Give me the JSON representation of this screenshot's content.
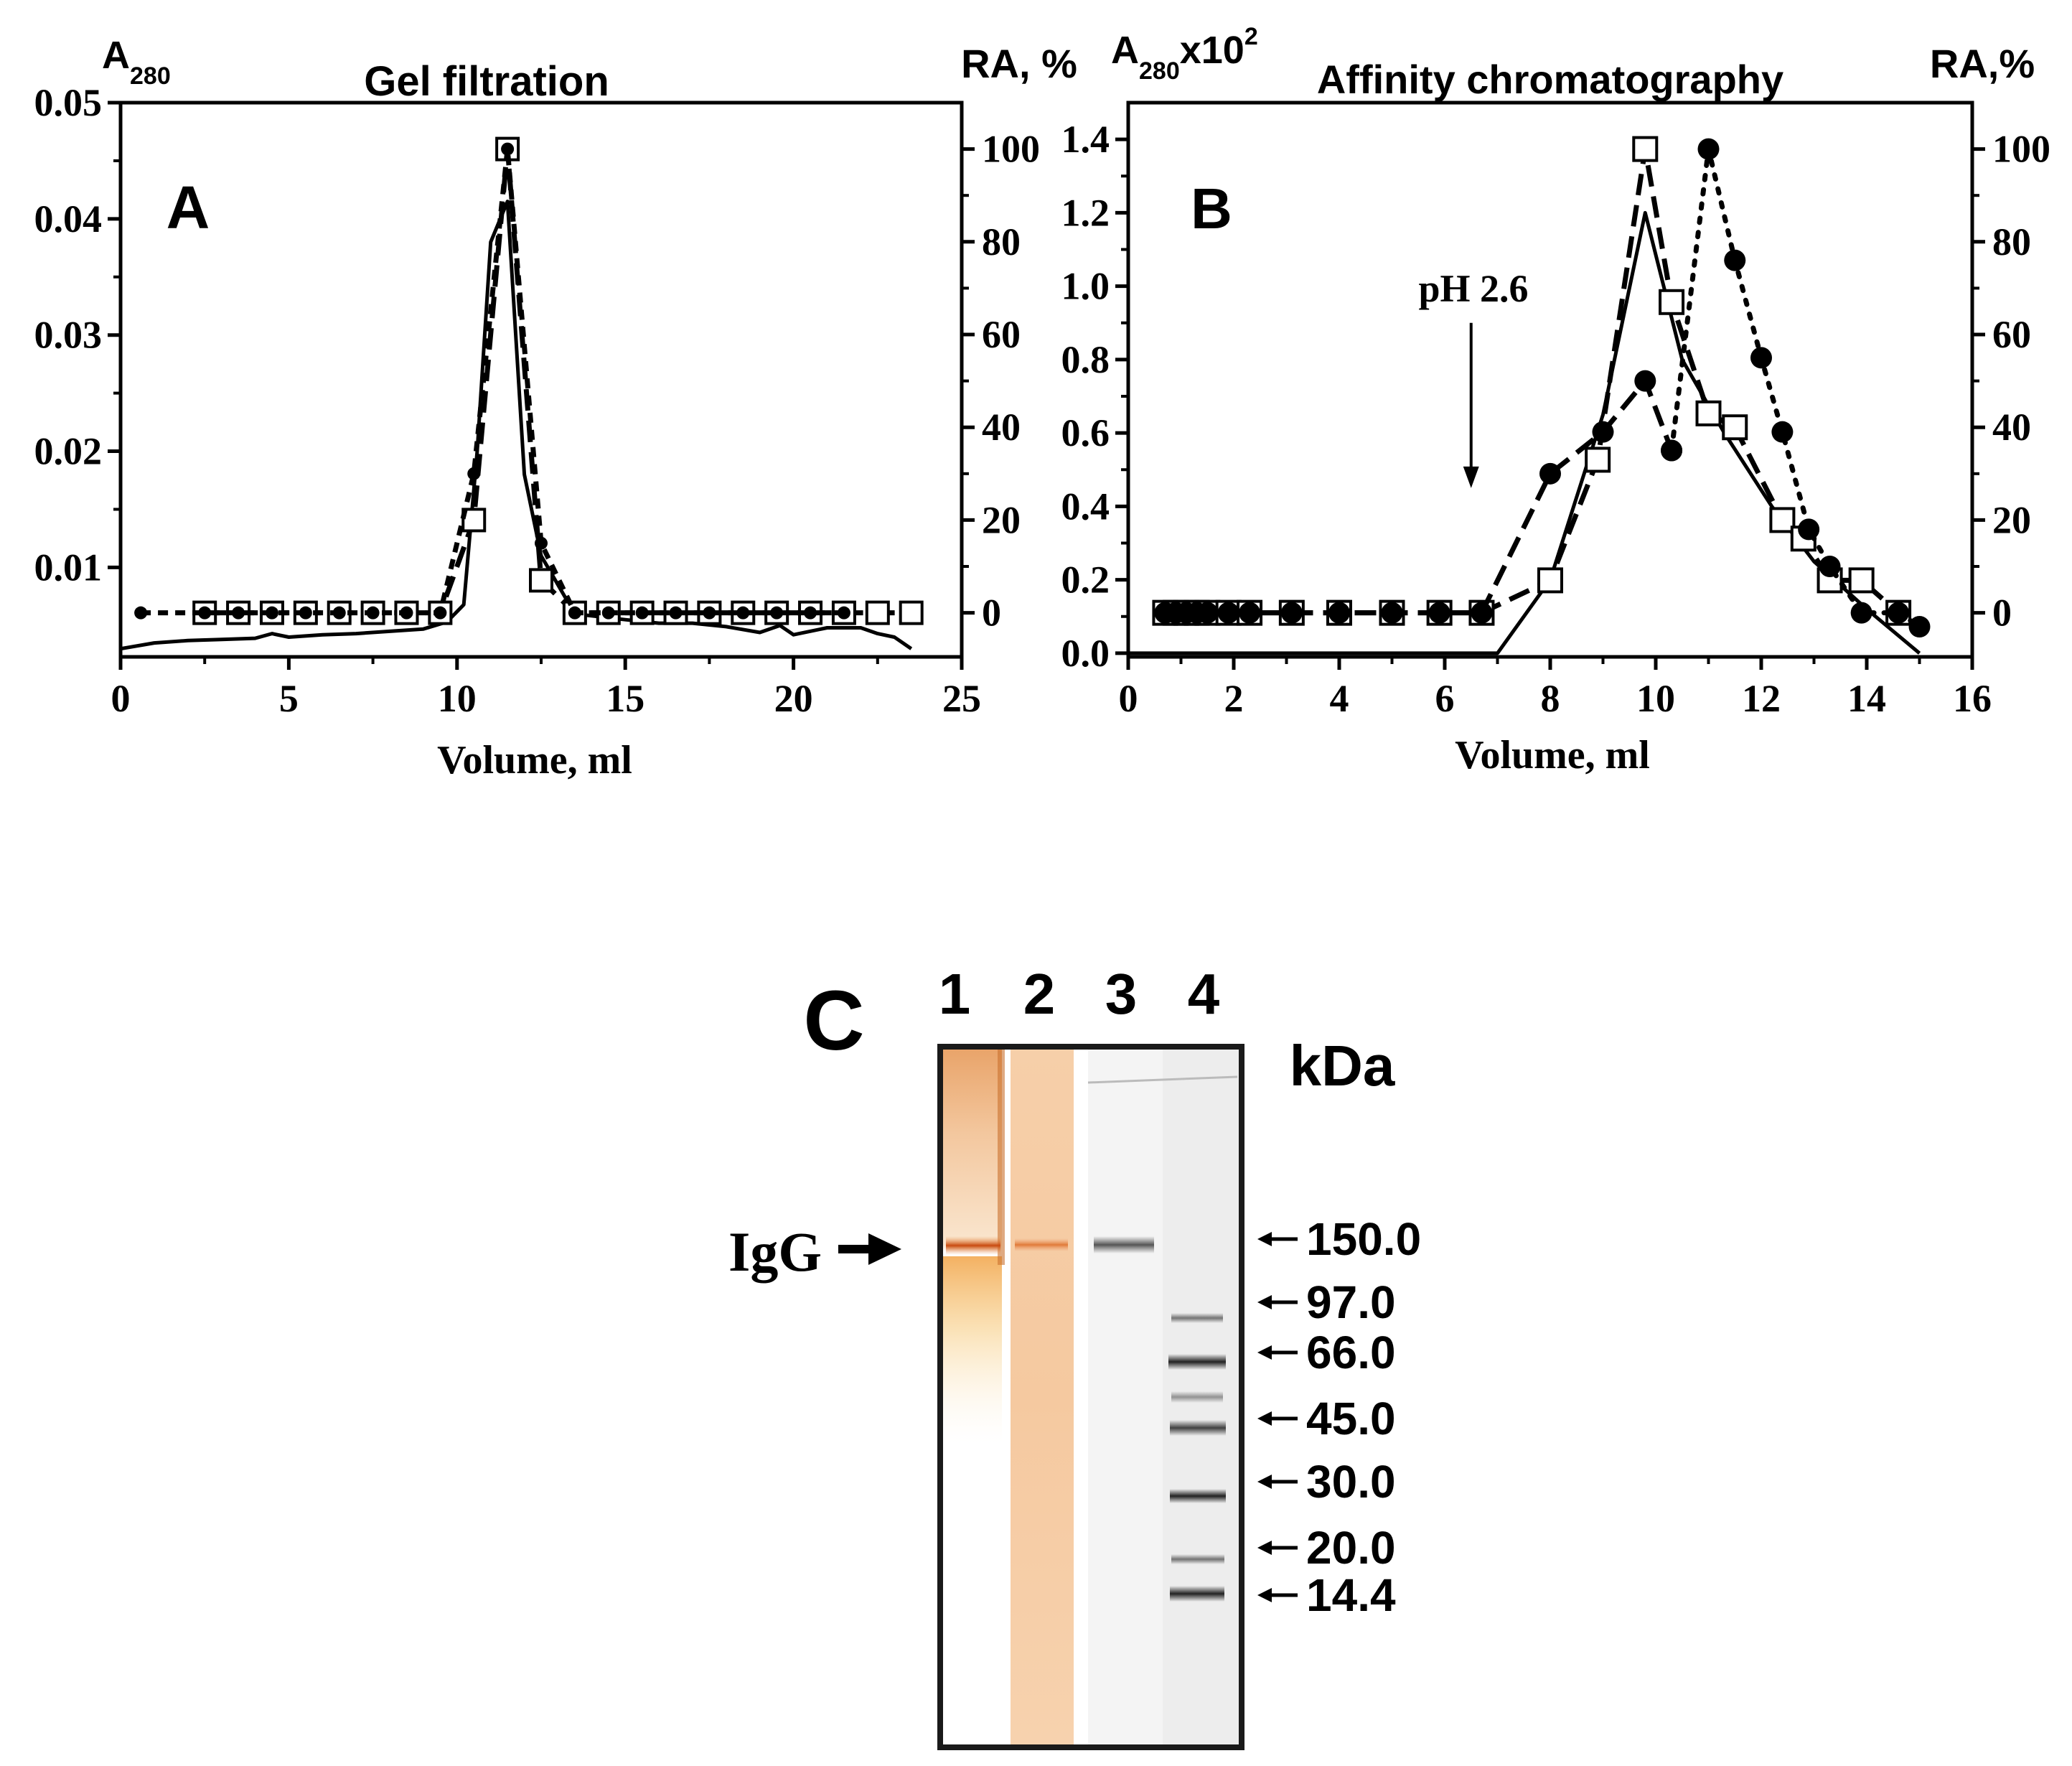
{
  "chart_data": [
    {
      "panel": "A",
      "type": "line",
      "title": "Gel filtration",
      "xlabel": "Volume, ml",
      "ylabel_left": "A",
      "ylabel_left_sub": "280",
      "ylabel_right": "RA, %",
      "xlim": [
        0,
        25
      ],
      "ylim_left": [
        0.0023,
        0.05
      ],
      "ylim_right": [
        -9.5,
        110
      ],
      "x_ticks": [
        0,
        5,
        10,
        15,
        20,
        25
      ],
      "y_left_ticks": [
        0.01,
        0.02,
        0.03,
        0.04,
        0.05
      ],
      "y_right_ticks": [
        0,
        20,
        40,
        60,
        80,
        100
      ],
      "grid": false,
      "series": [
        {
          "axis": "left",
          "style": "solid",
          "marker": "none",
          "x": [
            0,
            1,
            2,
            3,
            4,
            4.5,
            5,
            6,
            7,
            8,
            9,
            9.7,
            10.2,
            10.6,
            11.0,
            11.5,
            12.0,
            12.5,
            13.5,
            15,
            16,
            17,
            18,
            19,
            19.6,
            20,
            21,
            22,
            22.5,
            23,
            23.5
          ],
          "y": [
            0.003,
            0.0035,
            0.0037,
            0.0038,
            0.0039,
            0.0043,
            0.004,
            0.0042,
            0.0043,
            0.0045,
            0.0047,
            0.0053,
            0.0068,
            0.02,
            0.038,
            0.0415,
            0.018,
            0.011,
            0.006,
            0.0055,
            0.0052,
            0.0052,
            0.0049,
            0.0044,
            0.005,
            0.0042,
            0.0048,
            0.0048,
            0.0043,
            0.004,
            0.003
          ]
        },
        {
          "axis": "right",
          "style": "short-dash",
          "marker": "filled-circle",
          "x": [
            0.6,
            2.5,
            3.5,
            4.5,
            5.5,
            6.5,
            7.5,
            8.5,
            9.5,
            10.5,
            11.5,
            12.5,
            13.5,
            14.5,
            15.5,
            16.5,
            17.5,
            18.5,
            19.5,
            20.5,
            21.5
          ],
          "y": [
            0,
            0,
            0,
            0,
            0,
            0,
            0,
            0,
            0,
            30,
            100,
            15,
            0,
            0,
            0,
            0,
            0,
            0,
            0,
            0,
            0
          ]
        },
        {
          "axis": "right",
          "style": "long-dash",
          "marker": "open-square",
          "x": [
            2.5,
            3.5,
            4.5,
            5.5,
            6.5,
            7.5,
            8.5,
            9.5,
            10.5,
            11.5,
            12.5,
            13.5,
            14.5,
            15.5,
            16.5,
            17.5,
            18.5,
            19.5,
            20.5,
            21.5,
            22.5,
            23.5
          ],
          "y": [
            0,
            0,
            0,
            0,
            0,
            0,
            0,
            0,
            20,
            100,
            7,
            0,
            0,
            0,
            0,
            0,
            0,
            0,
            0,
            0,
            0,
            0
          ]
        }
      ]
    },
    {
      "panel": "B",
      "type": "line",
      "title": "Affinity chromatography",
      "xlabel": "Volume, ml",
      "ylabel_left": "A",
      "ylabel_left_sub": "280",
      "ylabel_left_suffix": "x10",
      "ylabel_left_sup": "2",
      "ylabel_right": "RA,%",
      "xlim": [
        0,
        16
      ],
      "ylim_left": [
        -0.01,
        1.5
      ],
      "ylim_right": [
        -9.5,
        110
      ],
      "x_ticks": [
        0,
        2,
        4,
        6,
        8,
        10,
        12,
        14,
        16
      ],
      "y_left_ticks": [
        0.0,
        0.2,
        0.4,
        0.6,
        0.8,
        1.0,
        1.2,
        1.4
      ],
      "y_right_ticks": [
        0,
        20,
        40,
        60,
        80,
        100
      ],
      "grid": false,
      "annotation": {
        "text": "pH 2.6",
        "x": 6.5,
        "y_from": 0.9,
        "y_to": 0.45
      },
      "series": [
        {
          "axis": "left",
          "style": "solid",
          "marker": "none",
          "x": [
            0,
            7.0,
            8.0,
            9.0,
            9.8,
            10.5,
            11.3,
            12.2,
            13.0,
            14.0,
            15.0
          ],
          "y": [
            0.0,
            0.0,
            0.2,
            0.65,
            1.2,
            0.8,
            0.6,
            0.4,
            0.25,
            0.12,
            0.0
          ]
        },
        {
          "axis": "right",
          "style": "long-dash",
          "marker": "filled-circle",
          "x": [
            0.7,
            0.9,
            1.1,
            1.3,
            1.5,
            1.9,
            2.3,
            3.1,
            4.0,
            5.0,
            5.9,
            6.7,
            8.0,
            9.0,
            9.8,
            10.3
          ],
          "y": [
            0,
            0,
            0,
            0,
            0,
            0,
            0,
            0,
            0,
            0,
            0,
            0,
            30,
            39,
            50,
            35
          ]
        },
        {
          "axis": "right",
          "style": "dotted",
          "marker": "filled-circle",
          "x": [
            10.3,
            11.0,
            11.5,
            12.0,
            12.4,
            12.9,
            13.3,
            13.9,
            14.6,
            15.0
          ],
          "y": [
            35,
            100,
            76,
            55,
            39,
            18,
            10,
            0,
            0,
            -3
          ]
        },
        {
          "axis": "right",
          "style": "long-dash",
          "marker": "open-square",
          "x": [
            0.7,
            0.9,
            1.1,
            1.3,
            1.5,
            1.9,
            2.3,
            3.1,
            4.0,
            5.0,
            5.9,
            6.7,
            8.0,
            8.9,
            9.8,
            10.3,
            11.0,
            11.5,
            12.4,
            12.8,
            13.3,
            13.9,
            14.6
          ],
          "y": [
            0,
            0,
            0,
            0,
            0,
            0,
            0,
            0,
            0,
            0,
            0,
            0,
            7,
            33,
            100,
            67,
            43,
            40,
            20,
            16,
            7,
            7,
            0
          ]
        }
      ]
    }
  ],
  "panel_labels": {
    "a": "A",
    "b": "B",
    "c": "C"
  },
  "gel": {
    "lane_labels": [
      "1",
      "2",
      "3",
      "4"
    ],
    "unit_label": "kDa",
    "igg_label": "IgG",
    "markers_kda": [
      "150.0",
      "97.0",
      "66.0",
      "45.0",
      "30.0",
      "20.0",
      "14.4"
    ]
  }
}
